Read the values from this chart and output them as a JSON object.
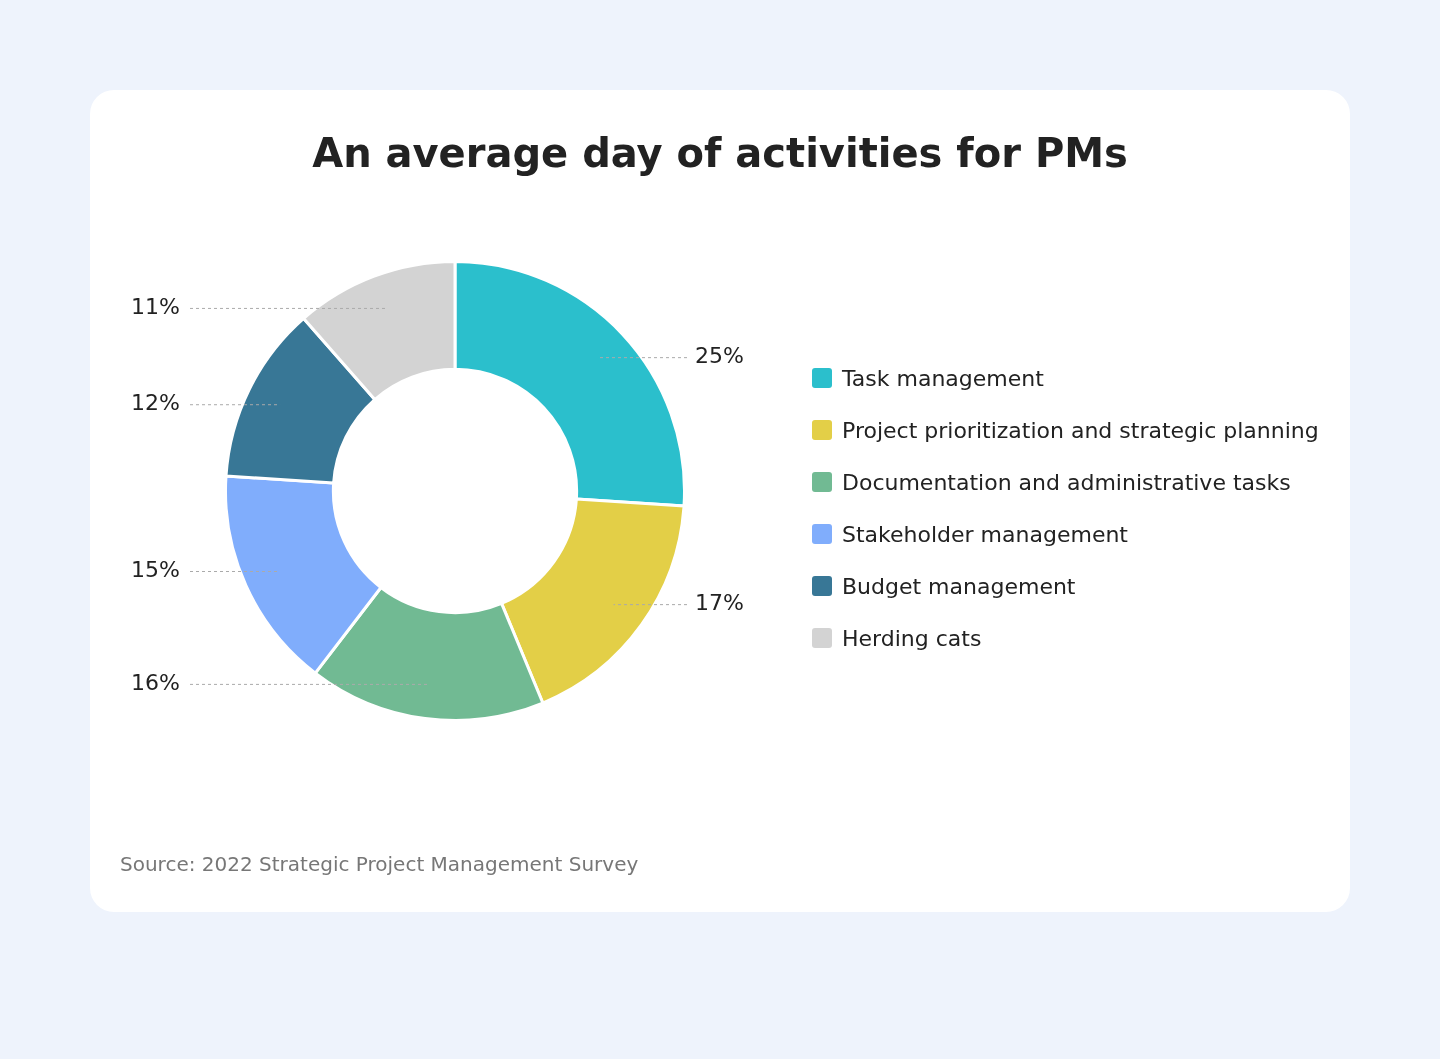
{
  "chart_data": {
    "type": "donut",
    "title": "An average day of activities for PMs",
    "categories": [
      "Task management",
      "Project prioritization and strategic planning",
      "Documentation and administrative tasks",
      "Stakeholder management",
      "Budget management",
      "Herding cats"
    ],
    "values": [
      25,
      17,
      16,
      15,
      12,
      11
    ],
    "value_labels": [
      "25%",
      "17%",
      "16%",
      "15%",
      "12%",
      "11%"
    ],
    "colors": [
      "#2bbfcc",
      "#e3cf47",
      "#71ba93",
      "#80adfc",
      "#387796",
      "#d3d3d3"
    ],
    "legend": "right",
    "annotations": [
      "Source: 2022 Strategic Project Management Survey"
    ]
  }
}
